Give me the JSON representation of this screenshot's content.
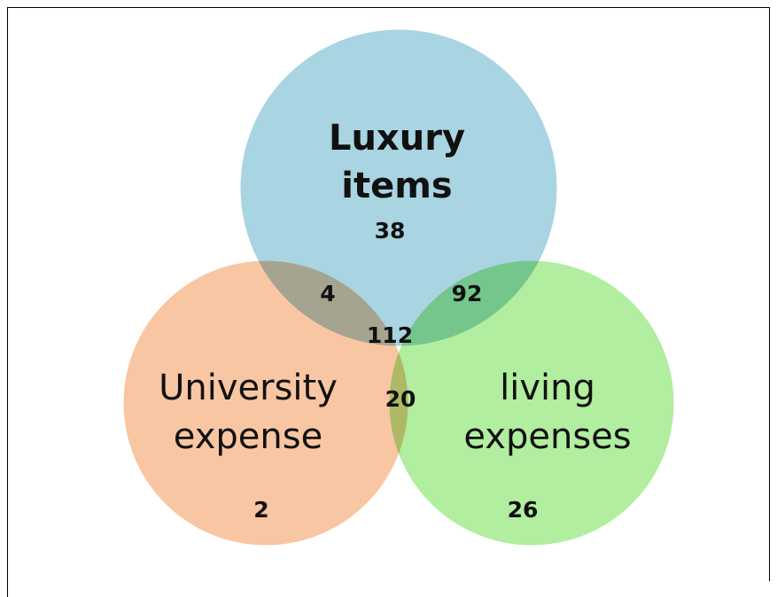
{
  "sets": [
    {
      "lines": [
        "Luxury",
        "items"
      ],
      "color": "#a9d4e2"
    },
    {
      "lines": [
        "University",
        "expense"
      ],
      "color": "#f9c6a3"
    },
    {
      "lines": [
        "living",
        "expenses"
      ],
      "color": "#b1ee9f"
    }
  ],
  "regions": [
    {
      "value": 38
    },
    {
      "value": 4
    },
    {
      "value": 92
    },
    {
      "value": 112
    },
    {
      "value": 20
    },
    {
      "value": 2
    },
    {
      "value": 26
    }
  ]
}
